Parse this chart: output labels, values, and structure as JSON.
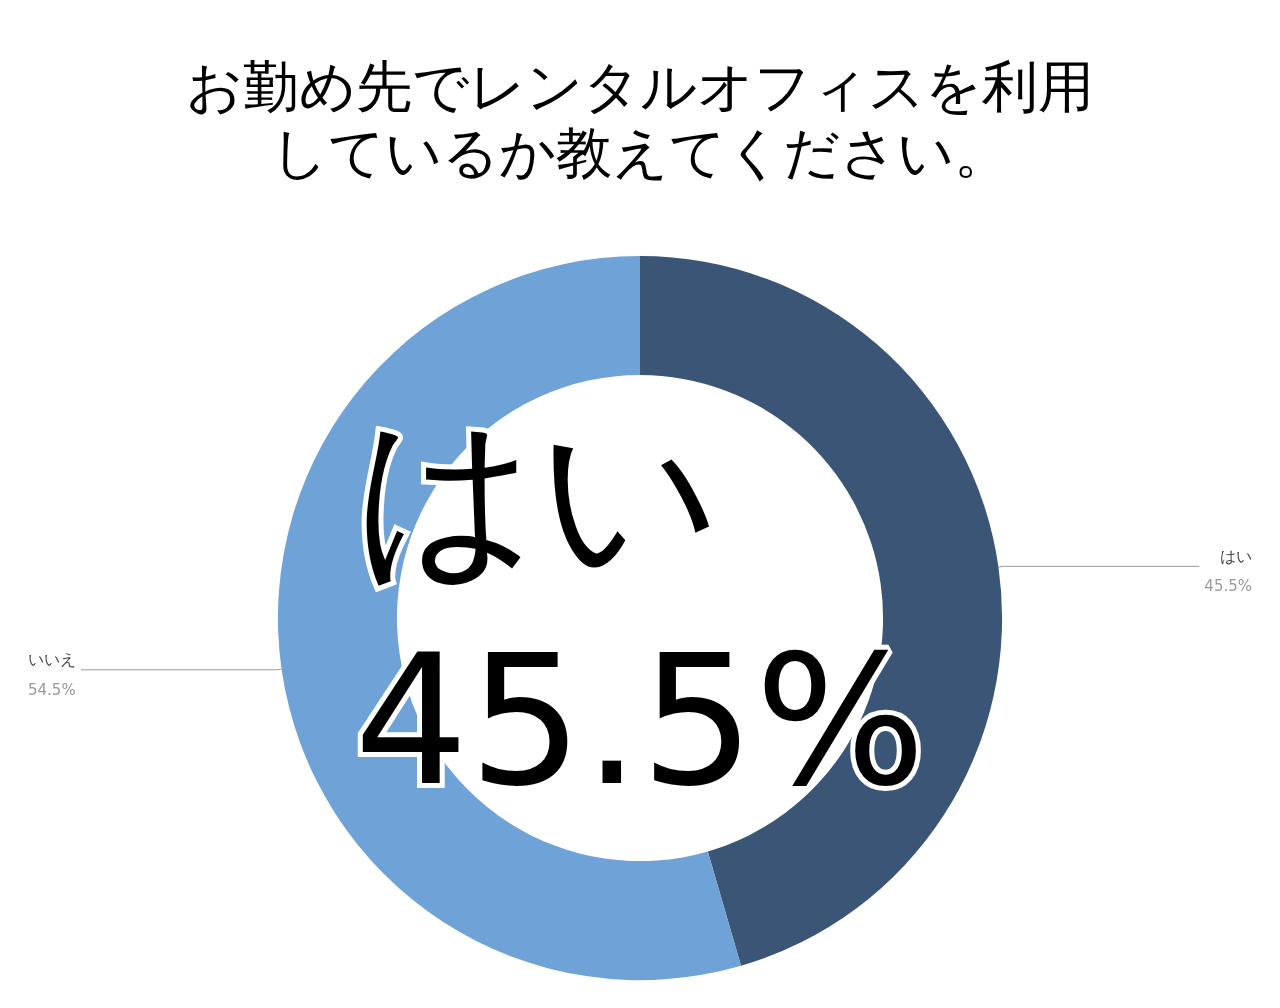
{
  "chart_data": {
    "type": "donut",
    "title": "お勤め先でレンタルオフィスを利用しているか教えてください。",
    "categories": [
      "はい",
      "いいえ"
    ],
    "values": [
      45.5,
      54.5
    ],
    "value_labels": [
      "45.5%",
      "54.5%"
    ],
    "colors": [
      "#3a5575",
      "#6fa3d8"
    ],
    "annotations": [
      "はい\n45.5%"
    ],
    "legend": false
  }
}
